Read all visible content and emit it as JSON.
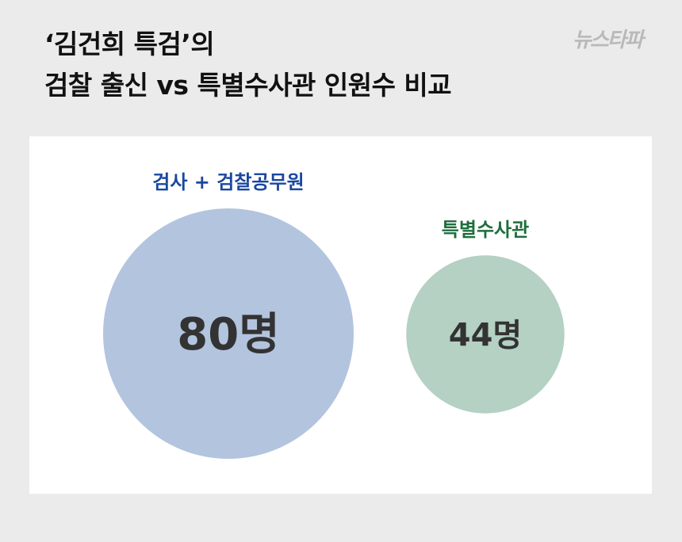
{
  "header": {
    "title_line1": "‘김건희 특검’의",
    "title_line2": "검찰 출신 vs 특별수사관 인원수 비교",
    "logo": "뉴스타파"
  },
  "chart_data": {
    "type": "bubble",
    "categories": [
      "검사 + 검찰공무원",
      "특별수사관"
    ],
    "values": [
      80,
      44
    ],
    "data_labels": [
      "80명",
      "44명"
    ],
    "colors": [
      "#b3c4df",
      "#b4d1c3"
    ],
    "label_colors": [
      "#1a47a0",
      "#1d6e3c"
    ],
    "value_label_color": "#333333"
  }
}
